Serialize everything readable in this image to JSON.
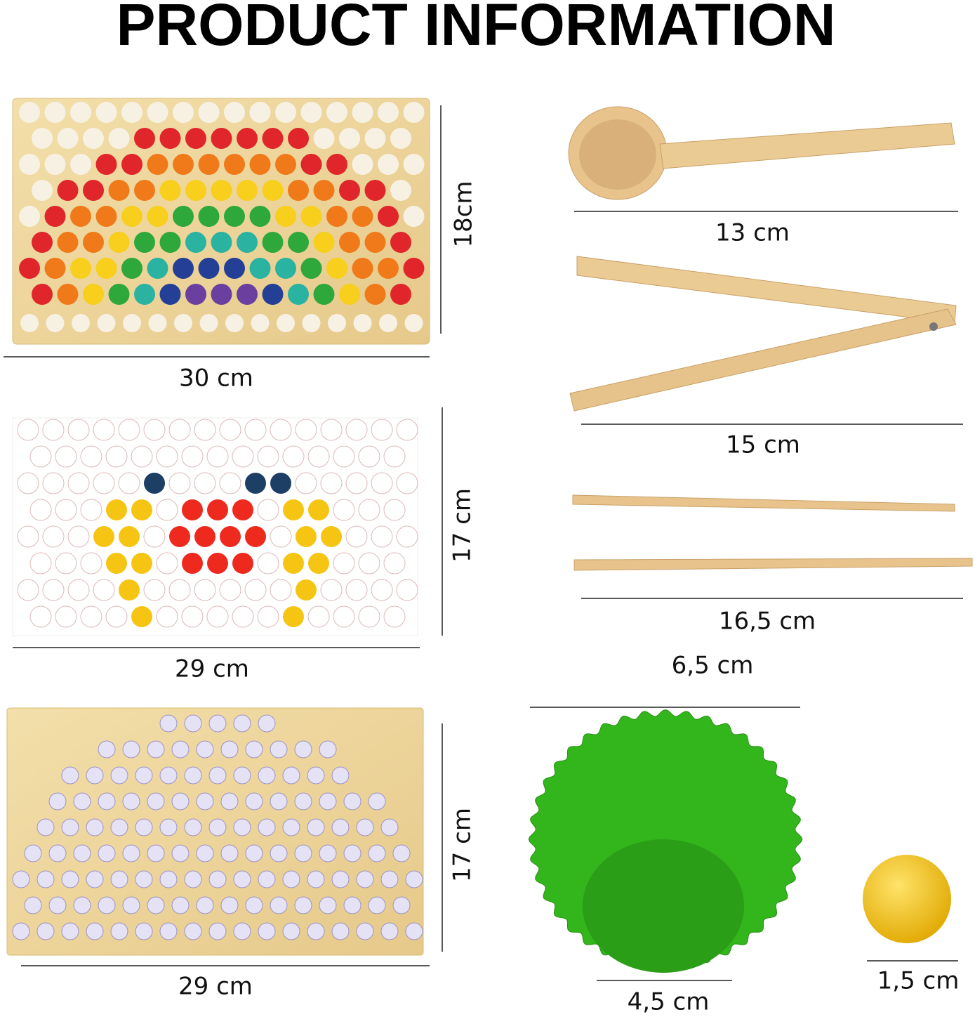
{
  "header": {
    "title": "PRODUCT INFORMATION"
  },
  "boards": [
    {
      "width": "30 cm",
      "height": "18cm"
    },
    {
      "width": "29 cm",
      "height": "17 cm"
    },
    {
      "width": "29 cm",
      "height": "17 cm"
    }
  ],
  "tools": [
    {
      "length": "13 cm"
    },
    {
      "length": "15 cm"
    },
    {
      "length": "16,5 cm"
    }
  ],
  "cup": {
    "top": "6,5 cm",
    "bottom": "4,5 cm"
  },
  "ball": {
    "diameter": "1,5 cm"
  }
}
